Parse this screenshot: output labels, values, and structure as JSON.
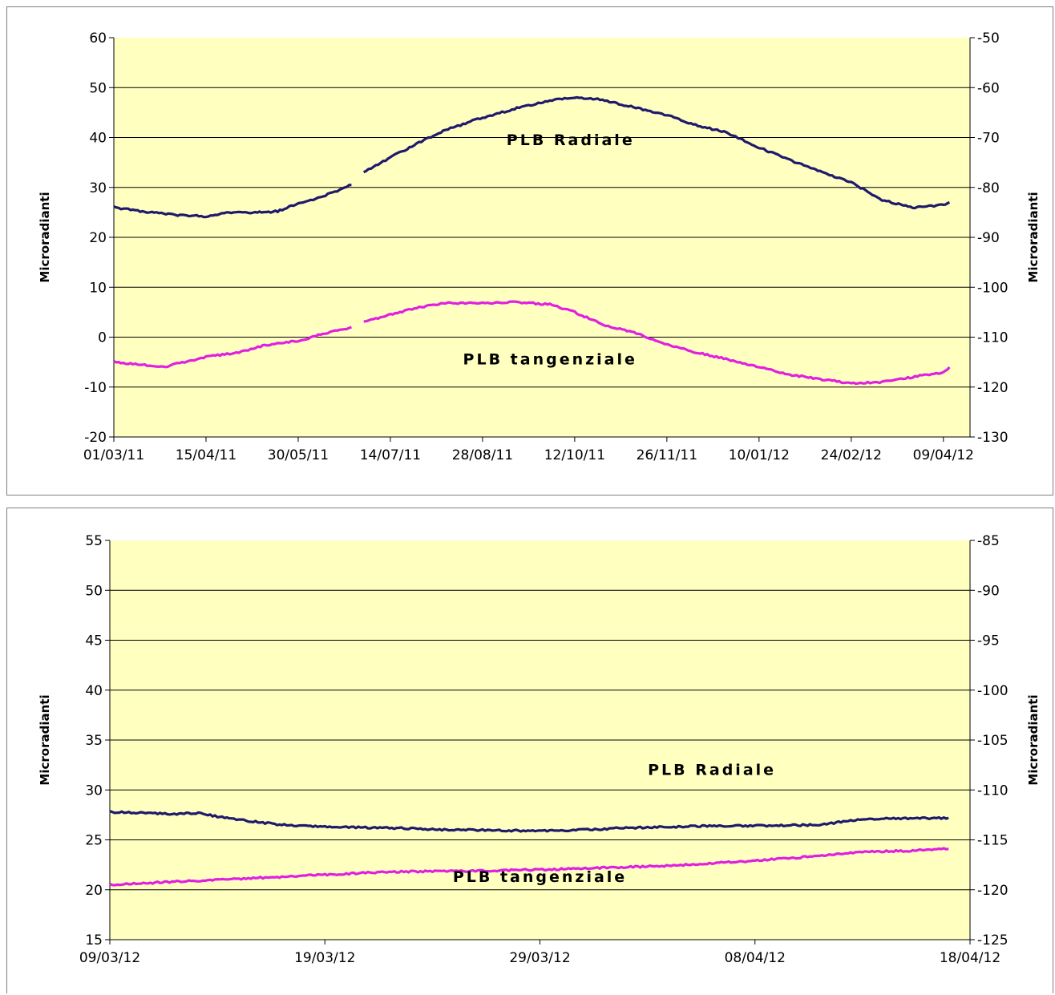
{
  "chart_data": [
    {
      "type": "line",
      "ylabel_left": "Microradianti",
      "ylabel_right": "Microradianti",
      "ylim_left": [
        -20,
        60
      ],
      "yticks_left": [
        -20,
        -10,
        0,
        10,
        20,
        30,
        40,
        50,
        60
      ],
      "ylim_right": [
        -130,
        -50
      ],
      "yticks_right": [
        -130,
        -120,
        -110,
        -100,
        -90,
        -80,
        -70,
        -60,
        -50
      ],
      "xlim": [
        "01/03/11",
        "22/04/12"
      ],
      "xticks": [
        "01/03/11",
        "15/04/11",
        "30/05/11",
        "14/07/11",
        "28/08/11",
        "12/10/11",
        "26/11/11",
        "10/01/12",
        "24/02/12",
        "09/04/12"
      ],
      "grid": true,
      "plot_background": "#ffffc0",
      "series": [
        {
          "name": "PLB Radiale",
          "color": "#1f1a6b",
          "segments": [
            [
              [
                "01/03/11",
                26
              ],
              [
                "15/03/11",
                25.2
              ],
              [
                "31/03/11",
                24.5
              ],
              [
                "15/04/11",
                24.2
              ],
              [
                "25/04/11",
                25
              ],
              [
                "10/05/11",
                25
              ],
              [
                "20/05/11",
                25.2
              ],
              [
                "30/05/11",
                26.8
              ],
              [
                "10/06/11",
                28
              ],
              [
                "25/06/11",
                30.5
              ]
            ],
            [
              [
                "01/07/11",
                33
              ],
              [
                "14/07/11",
                36
              ],
              [
                "28/07/11",
                39
              ],
              [
                "10/08/11",
                41.5
              ],
              [
                "28/08/11",
                44
              ],
              [
                "15/09/11",
                46
              ],
              [
                "01/10/11",
                47.5
              ],
              [
                "12/10/11",
                48
              ],
              [
                "22/10/11",
                47.8
              ],
              [
                "05/11/11",
                46.5
              ],
              [
                "26/11/11",
                44.5
              ],
              [
                "10/12/11",
                42.5
              ],
              [
                "25/12/11",
                41
              ],
              [
                "10/01/12",
                38
              ],
              [
                "25/01/12",
                35.5
              ],
              [
                "10/02/12",
                33
              ],
              [
                "24/02/12",
                31
              ],
              [
                "10/03/12",
                27.5
              ],
              [
                "25/03/12",
                26
              ],
              [
                "09/04/12",
                26.5
              ],
              [
                "12/04/12",
                27
              ]
            ]
          ]
        },
        {
          "name": "PLB tangenziale",
          "color": "#e020e0",
          "segments": [
            [
              [
                "01/03/11",
                -5
              ],
              [
                "15/03/11",
                -5.5
              ],
              [
                "25/03/11",
                -6
              ],
              [
                "15/04/11",
                -4
              ],
              [
                "01/05/11",
                -3
              ],
              [
                "15/05/11",
                -1.5
              ],
              [
                "30/05/11",
                -0.8
              ],
              [
                "10/06/11",
                0.5
              ],
              [
                "25/06/11",
                2
              ]
            ],
            [
              [
                "01/07/11",
                3
              ],
              [
                "14/07/11",
                4.5
              ],
              [
                "28/07/11",
                6
              ],
              [
                "10/08/11",
                6.8
              ],
              [
                "28/08/11",
                6.8
              ],
              [
                "15/09/11",
                7
              ],
              [
                "01/10/11",
                6.5
              ],
              [
                "12/10/11",
                5
              ],
              [
                "26/10/11",
                2.5
              ],
              [
                "10/11/11",
                1
              ],
              [
                "26/11/11",
                -1.5
              ],
              [
                "10/12/11",
                -3
              ],
              [
                "26/12/11",
                -4.5
              ],
              [
                "10/01/12",
                -6
              ],
              [
                "25/01/12",
                -7.5
              ],
              [
                "10/02/12",
                -8.5
              ],
              [
                "24/02/12",
                -9.2
              ],
              [
                "10/03/12",
                -9
              ],
              [
                "25/03/12",
                -8
              ],
              [
                "09/04/12",
                -7
              ],
              [
                "12/04/12",
                -6
              ]
            ]
          ]
        }
      ],
      "annotations": [
        {
          "text": "PLB Radiale",
          "x": "10/10/11",
          "y": 38.5
        },
        {
          "text": "PLB tangenziale",
          "x": "30/09/11",
          "y": -5.5
        }
      ]
    },
    {
      "type": "line",
      "ylabel_left": "Microradianti",
      "ylabel_right": "Microradianti",
      "ylim_left": [
        15,
        55
      ],
      "yticks_left": [
        15,
        20,
        25,
        30,
        35,
        40,
        45,
        50,
        55
      ],
      "ylim_right": [
        -125,
        -85
      ],
      "yticks_right": [
        -125,
        -120,
        -115,
        -110,
        -105,
        -100,
        -95,
        -90,
        -85
      ],
      "xlim": [
        "09/03/12",
        "18/04/12"
      ],
      "xticks": [
        "09/03/12",
        "19/03/12",
        "29/03/12",
        "08/04/12",
        "18/04/12"
      ],
      "grid": true,
      "plot_background": "#ffffc0",
      "series": [
        {
          "name": "PLB Radiale",
          "color": "#1f1a6b",
          "segments": [
            [
              [
                "09/03/12",
                27.8
              ],
              [
                "12/03/12",
                27.6
              ],
              [
                "13/03/12",
                27.7
              ],
              [
                "15/03/12",
                27
              ],
              [
                "17/03/12",
                26.5
              ],
              [
                "19/03/12",
                26.3
              ],
              [
                "22/03/12",
                26.2
              ],
              [
                "25/03/12",
                26
              ],
              [
                "29/03/12",
                25.9
              ],
              [
                "31/03/12",
                26
              ],
              [
                "02/04/12",
                26.2
              ],
              [
                "06/04/12",
                26.4
              ],
              [
                "08/04/12",
                26.4
              ],
              [
                "11/04/12",
                26.5
              ],
              [
                "13/04/12",
                27.1
              ],
              [
                "17/04/12",
                27.2
              ]
            ]
          ]
        },
        {
          "name": "PLB tangenziale",
          "color": "#e020e0",
          "segments": [
            [
              [
                "09/03/12",
                20.5
              ],
              [
                "12/03/12",
                20.8
              ],
              [
                "15/03/12",
                21.1
              ],
              [
                "19/03/12",
                21.5
              ],
              [
                "22/03/12",
                21.8
              ],
              [
                "26/03/12",
                21.9
              ],
              [
                "29/03/12",
                22
              ],
              [
                "01/04/12",
                22.2
              ],
              [
                "04/04/12",
                22.4
              ],
              [
                "08/04/12",
                22.9
              ],
              [
                "11/04/12",
                23.4
              ],
              [
                "13/04/12",
                23.8
              ],
              [
                "15/04/12",
                23.9
              ],
              [
                "17/04/12",
                24.1
              ]
            ]
          ]
        }
      ],
      "annotations": [
        {
          "text": "PLB Radiale",
          "x": "06/04/12",
          "y": 31.5
        },
        {
          "text": "PLB tangenziale",
          "x": "29/03/12",
          "y": 20.8
        }
      ]
    }
  ]
}
